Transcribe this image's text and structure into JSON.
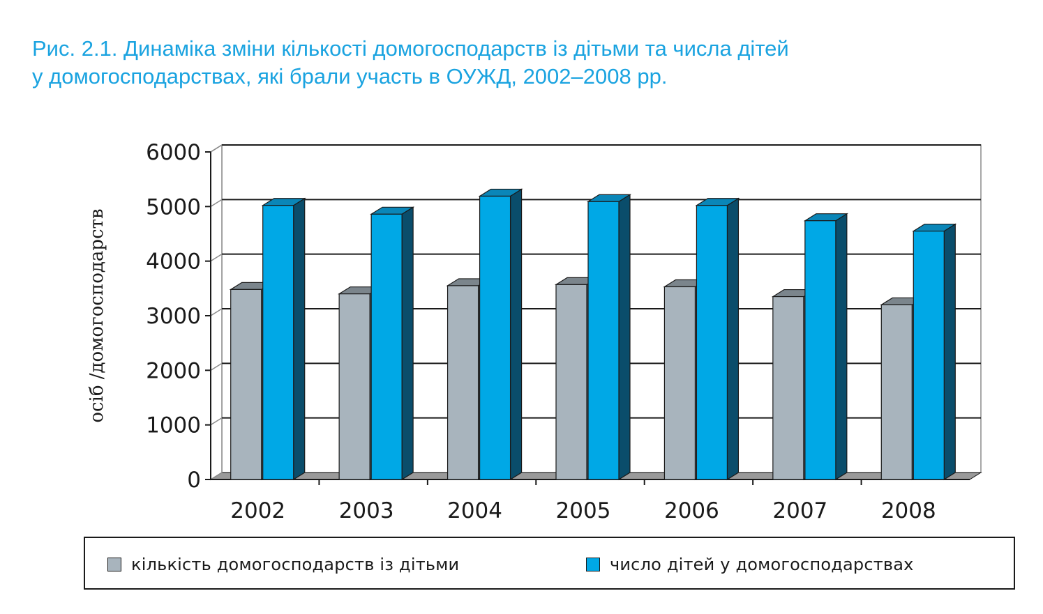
{
  "title": {
    "line1": "Рис. 2.1. Динаміка зміни кількості домогосподарств із дітьми та числа дітей",
    "line2": "у домогосподарствах, які брали участь в ОУЖД, 2002–2008 рр."
  },
  "colors": {
    "title": "#1aa3e0",
    "series1_front": "#a8b4bd",
    "series1_top": "#7b858c",
    "series1_side": "#565e64",
    "series2_front": "#00a8e6",
    "series2_top": "#0a86b8",
    "series2_side": "#0a4d6b",
    "grid": "#1a1a1a"
  },
  "chart_data": {
    "type": "bar",
    "style": "3d-clustered",
    "categories": [
      "2002",
      "2003",
      "2004",
      "2005",
      "2006",
      "2007",
      "2008"
    ],
    "series": [
      {
        "name": "кількість домогосподарств із дітьми",
        "values": [
          3480,
          3400,
          3550,
          3570,
          3530,
          3350,
          3200
        ]
      },
      {
        "name": "число дітей у домогосподарствах",
        "values": [
          5020,
          4860,
          5190,
          5090,
          5020,
          4740,
          4550
        ]
      }
    ],
    "ylabel": "осіб /домогосподарств",
    "xlabel": "",
    "ylim": [
      0,
      6000
    ],
    "yticks": [
      "0",
      "1000",
      "2000",
      "3000",
      "4000",
      "5000",
      "6000"
    ],
    "grid": true,
    "legend": "bottom"
  }
}
